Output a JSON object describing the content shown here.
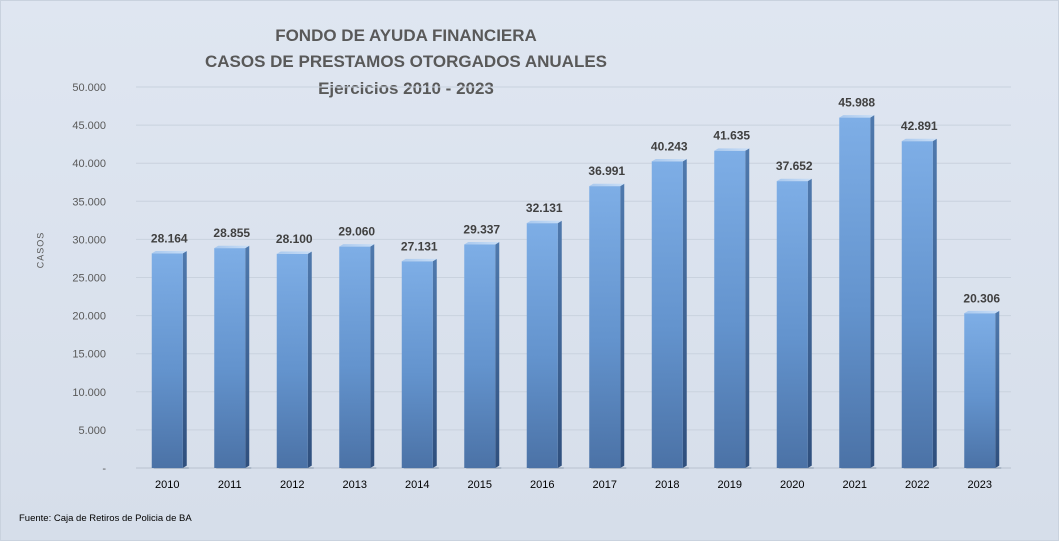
{
  "chart_data": {
    "type": "bar",
    "title": "FONDO DE AYUDA FINANCIERA",
    "subtitle": "CASOS DE PRESTAMOS  OTORGADOS ANUALES",
    "subtitle2": "Ejercicios  2010 - 2023",
    "xlabel": "",
    "ylabel": "CASOS",
    "ylim": [
      0,
      50000
    ],
    "y_ticks": [
      0,
      5000,
      10000,
      15000,
      20000,
      25000,
      30000,
      35000,
      40000,
      45000,
      50000
    ],
    "y_tick_labels": [
      "-",
      "5.000",
      "10.000",
      "15.000",
      "20.000",
      "25.000",
      "30.000",
      "35.000",
      "40.000",
      "45.000",
      "50.000"
    ],
    "grid": true,
    "legend": "none",
    "categories": [
      "2010",
      "2011",
      "2012",
      "2013",
      "2014",
      "2015",
      "2016",
      "2017",
      "2018",
      "2019",
      "2020",
      "2021",
      "2022",
      "2023"
    ],
    "values": [
      28164,
      28855,
      28100,
      29060,
      27131,
      29337,
      32131,
      36991,
      40243,
      41635,
      37652,
      45988,
      42891,
      20306
    ],
    "value_labels": [
      "28.164",
      "28.855",
      "28.100",
      "29.060",
      "27.131",
      "29.337",
      "32.131",
      "36.991",
      "40.243",
      "41.635",
      "37.652",
      "45.988",
      "42.891",
      "20.306"
    ],
    "bar_color": "#6f9fd8"
  },
  "source_note": "Fuente: Caja de Retiros de Policia de BA"
}
